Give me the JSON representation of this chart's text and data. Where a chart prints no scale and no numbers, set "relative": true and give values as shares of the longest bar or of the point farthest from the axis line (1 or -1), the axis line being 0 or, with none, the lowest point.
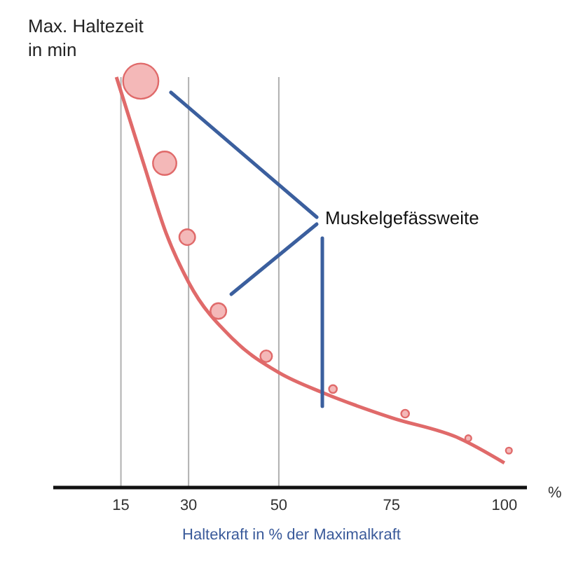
{
  "chart_data": {
    "type": "line",
    "relative": true,
    "xlabel": "Haltekraft in % der Maximalkraft",
    "ylabel": "Max. Haltezeit in min",
    "xlim": [
      0,
      105
    ],
    "xticks": [
      15,
      30,
      50,
      75,
      100
    ],
    "series": [
      {
        "color": "#e06a6a",
        "x": [
          14,
          20,
          25,
          30,
          40,
          50,
          60,
          75,
          90,
          100
        ],
        "values": [
          1,
          0.79,
          0.62,
          0.5,
          0.36,
          0.28,
          0.23,
          0.17,
          0.12,
          0.06
        ]
      },
      {
        "type": "bubble",
        "color": "#e06a6a",
        "x": [
          19.4,
          24.7,
          29.7,
          36.6,
          47.2,
          62,
          78,
          92,
          101
        ],
        "values": [
          0.99,
          0.79,
          0.61,
          0.43,
          0.32,
          0.24,
          0.18,
          0.12,
          0.09
        ],
        "sizes": [
          1,
          0.44,
          0.2,
          0.2,
          0.11,
          0.05,
          0.05,
          0.03,
          0.03
        ]
      }
    ],
    "ref_lines": [
      {
        "axis": "x",
        "value": 15,
        "color": "#b0b0b0"
      },
      {
        "axis": "x",
        "value": 30,
        "color": "#b0b0b0"
      },
      {
        "axis": "x",
        "value": 50,
        "color": "#b0b0b0"
      }
    ],
    "annotations": [
      "Muskelgefässweite",
      "%"
    ]
  }
}
